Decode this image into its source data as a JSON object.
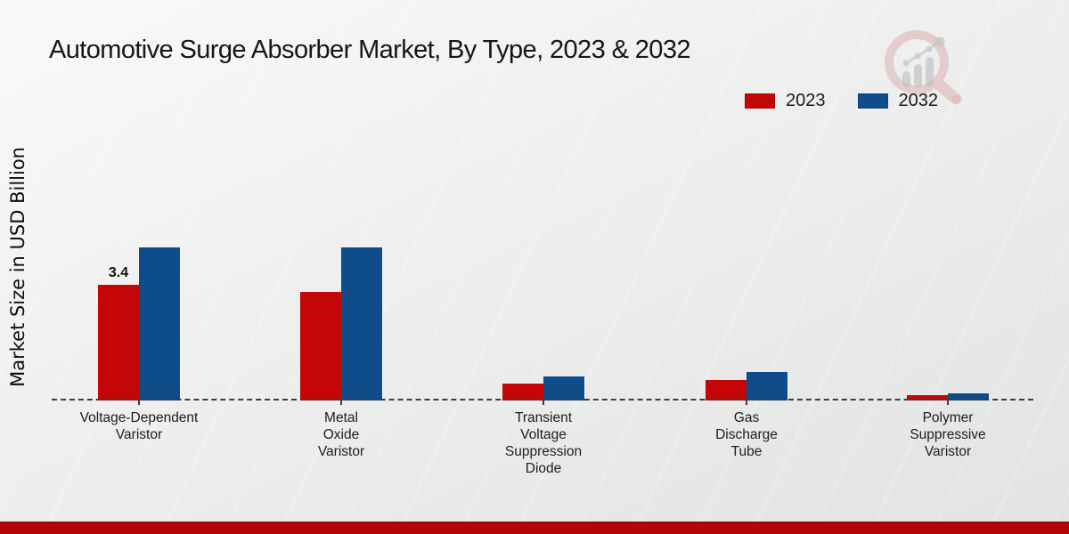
{
  "page": {
    "title": "Automotive Surge Absorber Market, By Type, 2023 & 2032",
    "background_color": "#ededee",
    "footer_bar_color": "#b30404"
  },
  "icons": {
    "watermark": "magnifier-growth-chart-logo"
  },
  "chart_data": {
    "type": "bar",
    "title": "Automotive Surge Absorber Market, By Type, 2023 & 2032",
    "xlabel": "",
    "ylabel": "Market Size in USD Billion",
    "ylim": [
      0,
      5
    ],
    "grid": false,
    "legend_position": "top-right",
    "baseline_style": "dashed",
    "categories": [
      "Voltage-Dependent Varistor",
      "Metal Oxide Varistor",
      "Transient Voltage Suppression Diode",
      "Gas Discharge Tube",
      "Polymer Suppressive Varistor"
    ],
    "category_label_lines": [
      [
        "Voltage-Dependent",
        "Varistor"
      ],
      [
        "Metal",
        "Oxide",
        "Varistor"
      ],
      [
        "Transient",
        "Voltage",
        "Suppression",
        "Diode"
      ],
      [
        "Gas",
        "Discharge",
        "Tube"
      ],
      [
        "Polymer",
        "Suppressive",
        "Varistor"
      ]
    ],
    "series": [
      {
        "name": "2023",
        "color": "#c40606",
        "values": [
          3.4,
          3.2,
          0.5,
          0.6,
          0.15
        ]
      },
      {
        "name": "2032",
        "color": "#0f4d8a",
        "values": [
          4.5,
          4.5,
          0.7,
          0.85,
          0.2
        ]
      }
    ],
    "annotations": [
      {
        "series": "2023",
        "category_index": 0,
        "text": "3.4"
      }
    ]
  }
}
